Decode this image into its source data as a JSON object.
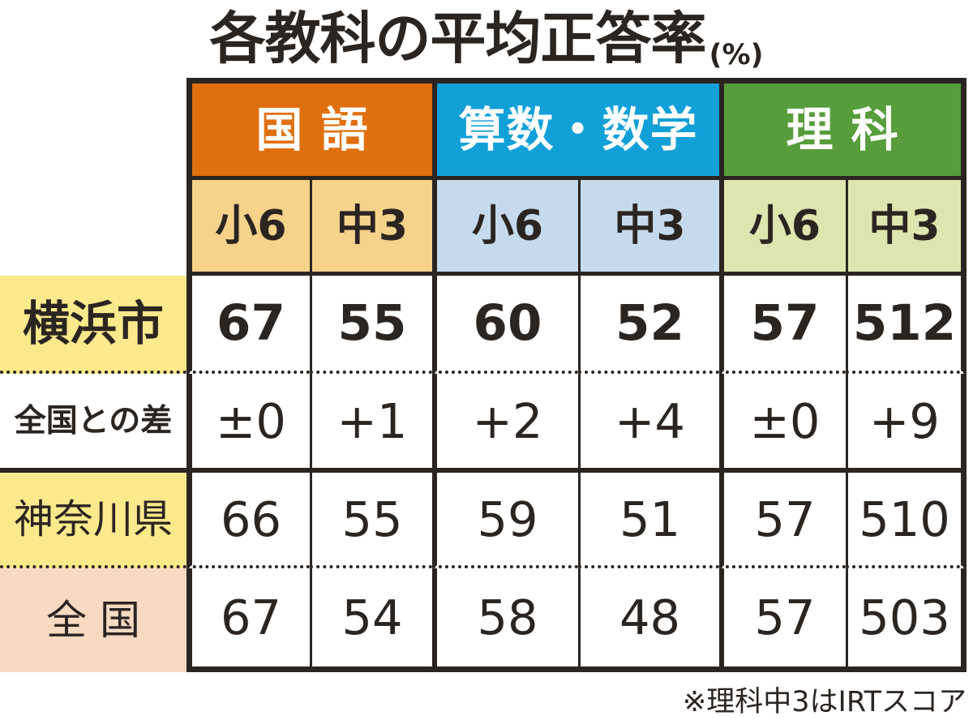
{
  "title": {
    "text": "各教科の平均正答率",
    "unit": "(%)"
  },
  "table": {
    "subject_headers": [
      {
        "label": "国 語",
        "color": "#e0700f",
        "light_color": "#f6d28a"
      },
      {
        "label": "算数・数学",
        "color": "#12a0d9",
        "light_color": "#c5dbed"
      },
      {
        "label": "理 科",
        "color": "#579d3c",
        "light_color": "#dce6ae"
      }
    ],
    "grade_headers": [
      "小6",
      "中3",
      "小6",
      "中3",
      "小6",
      "中3"
    ],
    "rows": [
      {
        "label": "横浜市",
        "label_color": "#fce98c",
        "values": [
          "67",
          "55",
          "60",
          "52",
          "57",
          "512"
        ]
      },
      {
        "label": "全国との差",
        "label_color": "#ffffff",
        "values": [
          "±0",
          "+1",
          "+2",
          "+4",
          "±0",
          "+9"
        ]
      },
      {
        "label": "神奈川県",
        "label_color": "#fce98c",
        "values": [
          "66",
          "55",
          "59",
          "51",
          "57",
          "510"
        ]
      },
      {
        "label": "全 国",
        "label_color": "#f8d9c2",
        "values": [
          "67",
          "54",
          "58",
          "48",
          "57",
          "503"
        ]
      }
    ]
  },
  "footnote": "※理科中3はIRTスコア",
  "colors": {
    "ink": "#2b2522"
  },
  "chart_data": {
    "type": "table",
    "title": "各教科の平均正答率(%)",
    "columns": [
      "国語 小6",
      "国語 中3",
      "算数・数学 小6",
      "算数・数学 中3",
      "理科 小6",
      "理科 中3"
    ],
    "rows": [
      {
        "name": "横浜市",
        "values": [
          67,
          55,
          60,
          52,
          57,
          512
        ]
      },
      {
        "name": "全国との差",
        "values": [
          "±0",
          "+1",
          "+2",
          "+4",
          "±0",
          "+9"
        ]
      },
      {
        "name": "神奈川県",
        "values": [
          66,
          55,
          59,
          51,
          57,
          510
        ]
      },
      {
        "name": "全国",
        "values": [
          67,
          54,
          58,
          48,
          57,
          503
        ]
      }
    ],
    "note": "理科中3はIRTスコア"
  }
}
